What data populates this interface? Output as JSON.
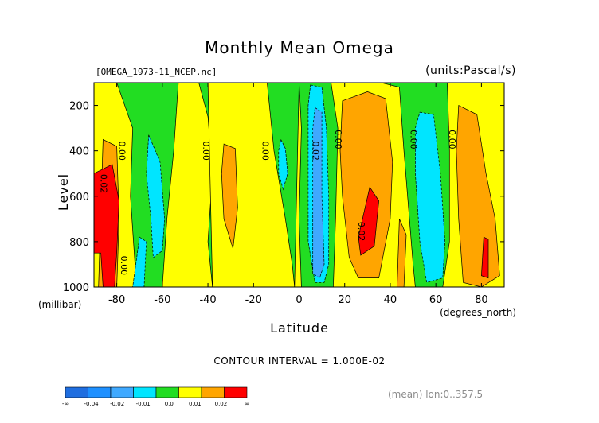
{
  "header": {
    "title": "Monthly Mean Omega",
    "file_label": "[OMEGA_1973-11_NCEP.nc]",
    "units_label": "(units:Pascal/s)"
  },
  "footer": {
    "contour_interval": "CONTOUR INTERVAL = 1.000E-02",
    "mean_note": "(mean) lon:0..357.5"
  },
  "colors": {
    "deep_blue": "#1f6ee0",
    "blue": "#1e90ff",
    "light_blue": "#3fa9ff",
    "cyan": "#00e5ff",
    "green": "#22dd22",
    "yellow": "#ffff00",
    "orange": "#ffa500",
    "red": "#ff0000"
  },
  "chart_data": {
    "type": "heatmap",
    "subtype": "filled-contour",
    "title": "Monthly Mean Omega",
    "xlabel": "Latitude",
    "x_unit_label": "(degrees_north)",
    "ylabel": "Level",
    "y_unit_label": "(millibar)",
    "xlim": [
      -90,
      90
    ],
    "ylim": [
      1000,
      100
    ],
    "y_inverted": true,
    "x_ticks": [
      -80,
      -60,
      -40,
      -20,
      0,
      20,
      40,
      60,
      80
    ],
    "y_ticks": [
      200,
      400,
      600,
      800,
      1000
    ],
    "contour_interval": 0.01,
    "contour_line_labels": [
      "0.00",
      "0.00",
      "0.00",
      "0.00",
      "0.00",
      "0.00",
      "0.00",
      "0.02",
      "0.02",
      "0.02"
    ],
    "colorbar": {
      "bins": [
        "deep_blue",
        "blue",
        "light_blue",
        "cyan",
        "green",
        "yellow",
        "orange",
        "red"
      ],
      "labels": [
        "-∞",
        "-0.04",
        "-0.02",
        "-0.01",
        "0.0",
        "0.01",
        "0.02",
        "∞"
      ]
    },
    "regions": [
      {
        "level": "yellow",
        "pts": [
          [
            -90,
            100
          ],
          [
            -80,
            100
          ],
          [
            -73,
            300
          ],
          [
            -74,
            600
          ],
          [
            -72,
            900
          ],
          [
            -68,
            1000
          ],
          [
            -90,
            1000
          ]
        ]
      },
      {
        "level": "yellow",
        "pts": [
          [
            -53,
            100
          ],
          [
            -44,
            100
          ],
          [
            -40,
            250
          ],
          [
            -38,
            500
          ],
          [
            -40,
            800
          ],
          [
            -38,
            1000
          ],
          [
            -60,
            1000
          ],
          [
            -58,
            700
          ],
          [
            -55,
            400
          ]
        ]
      },
      {
        "level": "yellow",
        "pts": [
          [
            -40,
            100
          ],
          [
            -14,
            100
          ],
          [
            -11,
            400
          ],
          [
            -6,
            700
          ],
          [
            -3,
            900
          ],
          [
            -2,
            1000
          ],
          [
            -38,
            1000
          ]
        ]
      },
      {
        "level": "yellow",
        "pts": [
          [
            0,
            100
          ],
          [
            1,
            300
          ],
          [
            0,
            700
          ],
          [
            1,
            1000
          ],
          [
            -2,
            1000
          ]
        ]
      },
      {
        "level": "yellow",
        "pts": [
          [
            14,
            100
          ],
          [
            21,
            100
          ],
          [
            36,
            100
          ],
          [
            44,
            120
          ],
          [
            46,
            400
          ],
          [
            50,
            900
          ],
          [
            51,
            1000
          ],
          [
            15,
            1000
          ],
          [
            16,
            700
          ],
          [
            17,
            300
          ]
        ]
      },
      {
        "level": "yellow",
        "pts": [
          [
            65,
            100
          ],
          [
            90,
            100
          ],
          [
            90,
            1000
          ],
          [
            63,
            1000
          ],
          [
            66,
            800
          ],
          [
            66,
            400
          ]
        ]
      },
      {
        "level": "orange",
        "pts": [
          [
            -86,
            350
          ],
          [
            -80,
            380
          ],
          [
            -79,
            700
          ],
          [
            -80,
            1000
          ],
          [
            -88,
            1000
          ]
        ]
      },
      {
        "level": "orange",
        "pts": [
          [
            -33,
            370
          ],
          [
            -28,
            390
          ],
          [
            -27,
            650
          ],
          [
            -29,
            830
          ],
          [
            -33,
            700
          ],
          [
            -34,
            500
          ]
        ]
      },
      {
        "level": "orange",
        "pts": [
          [
            19,
            180
          ],
          [
            30,
            140
          ],
          [
            38,
            170
          ],
          [
            41,
            450
          ],
          [
            40,
            700
          ],
          [
            35,
            960
          ],
          [
            26,
            960
          ],
          [
            22,
            870
          ],
          [
            19,
            600
          ],
          [
            18,
            400
          ]
        ]
      },
      {
        "level": "orange",
        "pts": [
          [
            44,
            700
          ],
          [
            47,
            770
          ],
          [
            46,
            1000
          ],
          [
            43,
            1000
          ]
        ]
      },
      {
        "level": "orange",
        "pts": [
          [
            70,
            200
          ],
          [
            78,
            240
          ],
          [
            82,
            500
          ],
          [
            86,
            700
          ],
          [
            88,
            950
          ],
          [
            80,
            1000
          ],
          [
            72,
            980
          ],
          [
            70,
            700
          ],
          [
            69,
            400
          ]
        ]
      },
      {
        "level": "red",
        "pts": [
          [
            -90,
            500
          ],
          [
            -82,
            460
          ],
          [
            -79,
            620
          ],
          [
            -80,
            850
          ],
          [
            -81,
            1000
          ],
          [
            -86,
            1000
          ],
          [
            -87,
            850
          ],
          [
            -90,
            850
          ]
        ]
      },
      {
        "level": "red",
        "pts": [
          [
            31,
            560
          ],
          [
            35,
            620
          ],
          [
            33,
            820
          ],
          [
            27,
            860
          ],
          [
            26,
            780
          ]
        ]
      },
      {
        "level": "red",
        "pts": [
          [
            81,
            780
          ],
          [
            83,
            790
          ],
          [
            83,
            960
          ],
          [
            80,
            950
          ]
        ]
      },
      {
        "level": "cyan",
        "pts": [
          [
            -70,
            780
          ],
          [
            -67,
            800
          ],
          [
            -68,
            1000
          ],
          [
            -73,
            1000
          ]
        ]
      },
      {
        "level": "cyan",
        "pts": [
          [
            -66,
            330
          ],
          [
            -61,
            450
          ],
          [
            -59,
            700
          ],
          [
            -60,
            840
          ],
          [
            -64,
            870
          ],
          [
            -65,
            700
          ],
          [
            -67,
            500
          ]
        ]
      },
      {
        "level": "cyan",
        "pts": [
          [
            -8,
            350
          ],
          [
            -6,
            390
          ],
          [
            -5,
            500
          ],
          [
            -7,
            570
          ],
          [
            -9,
            500
          ],
          [
            -9,
            400
          ]
        ]
      },
      {
        "level": "cyan",
        "pts": [
          [
            5,
            110
          ],
          [
            10,
            120
          ],
          [
            12,
            300
          ],
          [
            13,
            600
          ],
          [
            13,
            900
          ],
          [
            11,
            980
          ],
          [
            7,
            980
          ],
          [
            4,
            800
          ],
          [
            4,
            400
          ],
          [
            4,
            200
          ]
        ]
      },
      {
        "level": "cyan",
        "pts": [
          [
            53,
            230
          ],
          [
            59,
            240
          ],
          [
            62,
            500
          ],
          [
            64,
            800
          ],
          [
            63,
            960
          ],
          [
            56,
            980
          ],
          [
            53,
            800
          ],
          [
            51,
            500
          ],
          [
            51,
            300
          ]
        ]
      },
      {
        "level": "light_blue",
        "pts": [
          [
            7,
            210
          ],
          [
            10,
            230
          ],
          [
            10,
            600
          ],
          [
            11,
            900
          ],
          [
            9,
            960
          ],
          [
            6,
            940
          ],
          [
            6,
            600
          ],
          [
            6,
            300
          ]
        ]
      }
    ],
    "line_labels": [
      {
        "text": "0.02",
        "x": -86,
        "y": 545
      },
      {
        "text": "0.00",
        "x": -78,
        "y": 400
      },
      {
        "text": "0.00",
        "x": -77,
        "y": 905
      },
      {
        "text": "0.00",
        "x": -41,
        "y": 400
      },
      {
        "text": "0.00",
        "x": -15,
        "y": 400
      },
      {
        "text": "0.02",
        "x": 7,
        "y": 400
      },
      {
        "text": "0.00",
        "x": 17,
        "y": 350
      },
      {
        "text": "0.02",
        "x": 27,
        "y": 755
      },
      {
        "text": "0.00",
        "x": 50,
        "y": 350
      },
      {
        "text": "0.00",
        "x": 67,
        "y": 350
      }
    ]
  }
}
